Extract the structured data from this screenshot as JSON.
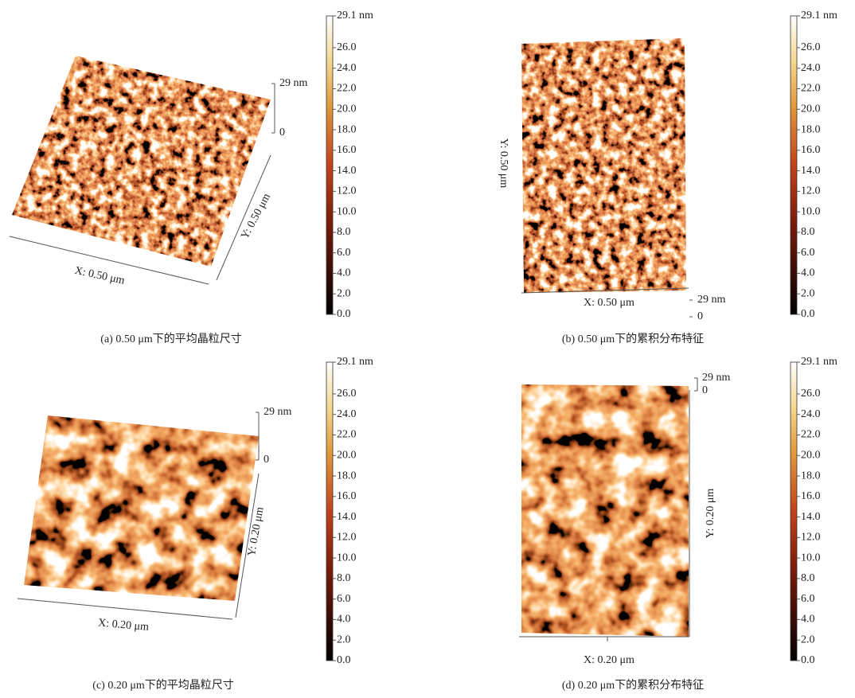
{
  "panels": [
    {
      "caption": "(a) 0.50 μm下的平均晶粒尺寸",
      "x_label": "X: 0.50 μm",
      "y_label": "Y: 0.50 μm",
      "z_ticks": [
        {
          "value": 29,
          "label": "29 nm"
        },
        0
      ],
      "colorbar": {
        "clim": [
          0,
          29.1
        ],
        "ticks": [
          {
            "value": 29.1,
            "label": "29.1 nm"
          },
          {
            "value": 26,
            "label": "26.0"
          },
          {
            "value": 24,
            "label": "24.0"
          },
          {
            "value": 22,
            "label": "22.0"
          },
          {
            "value": 20,
            "label": "20.0"
          },
          {
            "value": 18,
            "label": "18.0"
          },
          {
            "value": 16,
            "label": "16.0"
          },
          {
            "value": 14,
            "label": "14.0"
          },
          {
            "value": 12,
            "label": "12.0"
          },
          {
            "value": 10,
            "label": "10.0"
          },
          {
            "value": 8,
            "label": "8.0"
          },
          {
            "value": 6,
            "label": "6.0"
          },
          {
            "value": 4,
            "label": "4.0"
          },
          {
            "value": 2,
            "label": "2.0"
          },
          {
            "value": 0,
            "label": "0.0"
          }
        ]
      }
    },
    {
      "caption": "(b) 0.50 μm下的累积分布特征",
      "x_label": "X: 0.50 μm",
      "y_label": "Y: 0.50 μm",
      "z_ticks": [
        0,
        {
          "value": 29,
          "label": "29 nm"
        }
      ],
      "colorbar": {
        "clim": [
          0,
          29.1
        ],
        "ticks": [
          {
            "value": 29.1,
            "label": "29.1 nm"
          },
          {
            "value": 26,
            "label": "26.0"
          },
          {
            "value": 24,
            "label": "24.0"
          },
          {
            "value": 22,
            "label": "22.0"
          },
          {
            "value": 20,
            "label": "20.0"
          },
          {
            "value": 18,
            "label": "18.0"
          },
          {
            "value": 16,
            "label": "16.0"
          },
          {
            "value": 14,
            "label": "14.0"
          },
          {
            "value": 12,
            "label": "12.0"
          },
          {
            "value": 10,
            "label": "10.0"
          },
          {
            "value": 8,
            "label": "8.0"
          },
          {
            "value": 6,
            "label": "6.0"
          },
          {
            "value": 4,
            "label": "4.0"
          },
          {
            "value": 2,
            "label": "2.0"
          },
          {
            "value": 0,
            "label": "0.0"
          }
        ]
      }
    },
    {
      "caption": "(c) 0.20 μm下的平均晶粒尺寸",
      "x_label": "X: 0.20 μm",
      "y_label": "Y: 0.20 μm",
      "z_ticks": [
        {
          "value": 29,
          "label": "29 nm"
        },
        0
      ],
      "colorbar": {
        "clim": [
          0,
          29.1
        ],
        "ticks": [
          {
            "value": 29.1,
            "label": "29.1 nm"
          },
          {
            "value": 26,
            "label": "26.0"
          },
          {
            "value": 24,
            "label": "24.0"
          },
          {
            "value": 22,
            "label": "22.0"
          },
          {
            "value": 20,
            "label": "20.0"
          },
          {
            "value": 18,
            "label": "18.0"
          },
          {
            "value": 16,
            "label": "16.0"
          },
          {
            "value": 14,
            "label": "14.0"
          },
          {
            "value": 12,
            "label": "12.0"
          },
          {
            "value": 10,
            "label": "10.0"
          },
          {
            "value": 8,
            "label": "8.0"
          },
          {
            "value": 6,
            "label": "6.0"
          },
          {
            "value": 4,
            "label": "4.0"
          },
          {
            "value": 2,
            "label": "2.0"
          },
          {
            "value": 0,
            "label": "0.0"
          }
        ]
      }
    },
    {
      "caption": "(d) 0.20 μm下的累积分布特征",
      "x_label": "X: 0.20 μm",
      "y_label": "Y: 0.20 μm",
      "z_ticks": [
        {
          "value": 29,
          "label": "29 nm"
        },
        0
      ],
      "colorbar": {
        "clim": [
          0,
          29.1
        ],
        "ticks": [
          {
            "value": 29.1,
            "label": "29.1 nm"
          },
          {
            "value": 26,
            "label": "26.0"
          },
          {
            "value": 24,
            "label": "24.0"
          },
          {
            "value": 22,
            "label": "22.0"
          },
          {
            "value": 20,
            "label": "20.0"
          },
          {
            "value": 18,
            "label": "18.0"
          },
          {
            "value": 16,
            "label": "16.0"
          },
          {
            "value": 14,
            "label": "14.0"
          },
          {
            "value": 12,
            "label": "12.0"
          },
          {
            "value": 10,
            "label": "10.0"
          },
          {
            "value": 8,
            "label": "8.0"
          },
          {
            "value": 6,
            "label": "6.0"
          },
          {
            "value": 4,
            "label": "4.0"
          },
          {
            "value": 2,
            "label": "2.0"
          },
          {
            "value": 0,
            "label": "0.0"
          }
        ]
      }
    }
  ]
}
